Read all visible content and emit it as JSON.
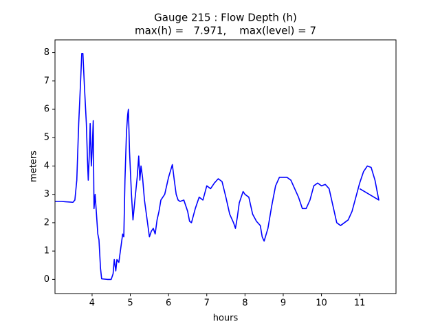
{
  "chart_data": {
    "type": "line",
    "title": "Gauge 215 : Flow Depth (h)",
    "subtitle": "max(h) =   7.971,    max(level) = 7",
    "x_label": "hours",
    "y_label": "meters",
    "xlim": [
      3.03,
      11.95
    ],
    "ylim": [
      -0.5,
      8.45
    ],
    "xticks": [
      4,
      5,
      6,
      7,
      8,
      9,
      10,
      11
    ],
    "yticks": [
      0,
      1,
      2,
      3,
      4,
      5,
      6,
      7,
      8
    ],
    "grid": false,
    "series": [
      {
        "color": "#0000ff",
        "x": [
          3.03,
          3.2,
          3.3,
          3.4,
          3.5,
          3.55,
          3.6,
          3.65,
          3.7,
          3.73,
          3.76,
          3.8,
          3.85,
          3.88,
          3.9,
          3.93,
          3.95,
          3.98,
          4.0,
          4.03,
          4.05,
          4.08,
          4.1,
          4.15,
          4.18,
          4.22,
          4.25,
          4.4,
          4.5,
          4.55,
          4.58,
          4.62,
          4.65,
          4.7,
          4.75,
          4.8,
          4.83,
          4.86,
          4.9,
          4.93,
          4.95,
          4.98,
          5.03,
          5.07,
          5.12,
          5.18,
          5.22,
          5.25,
          5.28,
          5.32,
          5.37,
          5.45,
          5.5,
          5.55,
          5.6,
          5.65,
          5.7,
          5.75,
          5.8,
          5.9,
          6.0,
          6.1,
          6.15,
          6.2,
          6.25,
          6.3,
          6.4,
          6.5,
          6.55,
          6.6,
          6.7,
          6.8,
          6.9,
          7.0,
          7.1,
          7.2,
          7.3,
          7.4,
          7.5,
          7.6,
          7.7,
          7.75,
          7.8,
          7.85,
          7.95,
          8.0,
          8.1,
          8.2,
          8.3,
          8.4,
          8.45,
          8.5,
          8.6,
          8.7,
          8.8,
          8.9,
          9.0,
          9.1,
          9.2,
          9.3,
          9.4,
          9.5,
          9.6,
          9.7,
          9.8,
          9.9,
          10.0,
          10.1,
          10.2,
          10.3,
          10.4,
          10.5,
          10.6,
          10.7,
          10.8,
          10.9,
          11.0,
          11.1,
          11.2,
          11.3,
          11.4,
          11.5,
          11.0
        ],
        "values": [
          2.75,
          2.75,
          2.74,
          2.73,
          2.72,
          2.8,
          3.5,
          5.5,
          7.0,
          7.971,
          7.971,
          6.8,
          5.5,
          4.2,
          3.5,
          4.5,
          5.5,
          4.0,
          4.5,
          5.6,
          2.5,
          3.0,
          2.6,
          1.6,
          1.4,
          0.4,
          0.02,
          0.0,
          0.0,
          0.2,
          0.7,
          0.3,
          0.7,
          0.6,
          1.1,
          1.6,
          1.5,
          3.5,
          5.2,
          5.8,
          6.0,
          4.5,
          3.0,
          2.1,
          2.8,
          3.6,
          4.35,
          3.5,
          4.0,
          3.6,
          2.8,
          2.0,
          1.5,
          1.7,
          1.8,
          1.6,
          2.1,
          2.4,
          2.8,
          3.0,
          3.6,
          4.05,
          3.5,
          3.0,
          2.8,
          2.75,
          2.8,
          2.4,
          2.05,
          2.0,
          2.5,
          2.9,
          2.8,
          3.3,
          3.2,
          3.4,
          3.55,
          3.45,
          2.9,
          2.3,
          2.0,
          1.8,
          2.2,
          2.7,
          3.1,
          3.0,
          2.9,
          2.3,
          2.05,
          1.9,
          1.5,
          1.35,
          1.8,
          2.6,
          3.3,
          3.6,
          3.6,
          3.6,
          3.5,
          3.2,
          2.9,
          2.5,
          2.5,
          2.8,
          3.3,
          3.4,
          3.3,
          3.35,
          3.2,
          2.6,
          2.0,
          1.9,
          2.0,
          2.1,
          2.4,
          2.9,
          3.4,
          3.8,
          4.0,
          3.95,
          3.5,
          2.8,
          3.2
        ]
      }
    ]
  }
}
